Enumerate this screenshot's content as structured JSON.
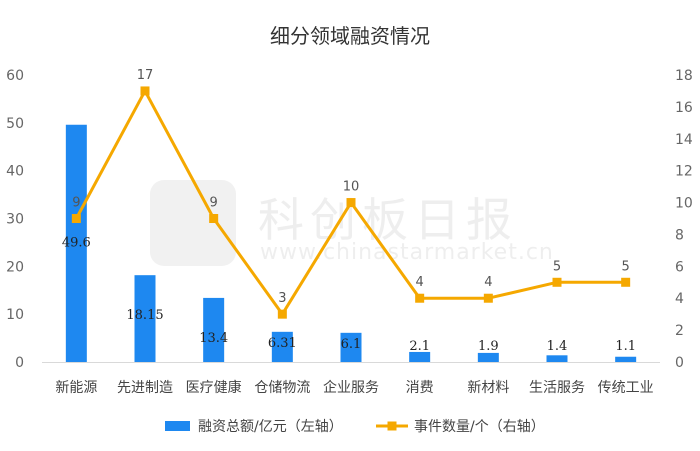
{
  "chart_data": {
    "type": "bar+line",
    "title": "细分领域融资情况",
    "categories": [
      "新能源",
      "先进制造",
      "医疗健康",
      "仓储物流",
      "企业服务",
      "消费",
      "新材料",
      "生活服务",
      "传统工业"
    ],
    "series": [
      {
        "name": "融资总额/亿元（左轴）",
        "type": "bar",
        "axis": "left",
        "color": "#1e88f0",
        "values": [
          49.6,
          18.15,
          13.4,
          6.31,
          6.1,
          2.1,
          1.9,
          1.4,
          1.1
        ],
        "labels": [
          "49.6",
          "18.15",
          "13.4",
          "6.31",
          "6.1",
          "2.1",
          "1.9",
          "1.4",
          "1.1"
        ]
      },
      {
        "name": "事件数量/个（右轴）",
        "type": "line",
        "axis": "right",
        "color": "#f5a800",
        "values": [
          9,
          17,
          9,
          3,
          10,
          4,
          4,
          5,
          5
        ],
        "labels": [
          "9",
          "17",
          "9",
          "3",
          "10",
          "4",
          "4",
          "5",
          "5"
        ]
      }
    ],
    "y_left": {
      "min": 0,
      "max": 60,
      "ticks": [
        "0",
        "10",
        "20",
        "30",
        "40",
        "50",
        "60"
      ]
    },
    "y_right": {
      "min": 0,
      "max": 18,
      "ticks": [
        "0",
        "2",
        "4",
        "6",
        "8",
        "10",
        "12",
        "14",
        "16",
        "18"
      ]
    },
    "grid": false,
    "legend_position": "bottom"
  },
  "watermark": {
    "text": "科创板日报",
    "url": "www.chinastarmarket.cn"
  }
}
